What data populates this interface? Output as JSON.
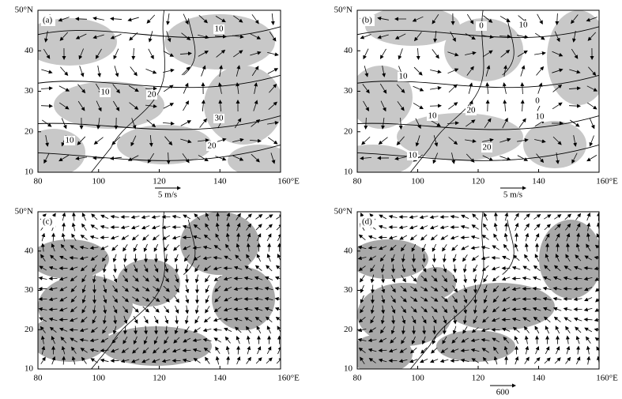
{
  "panels": [
    {
      "label": "(a)",
      "xticks": [
        "80",
        "100",
        "120",
        "140",
        "160°E"
      ],
      "yticks": [
        "10",
        "20",
        "30",
        "40",
        "50°N"
      ],
      "scale_label": "5 m/s",
      "contour_labels": [
        "10",
        "10",
        "20",
        "30",
        "10",
        "20"
      ]
    },
    {
      "label": "(b)",
      "xticks": [
        "80",
        "100",
        "120",
        "140",
        "160°E"
      ],
      "yticks": [
        "10",
        "20",
        "30",
        "40",
        "50°N"
      ],
      "scale_label": "5 m/s",
      "contour_labels": [
        "0",
        "10",
        "10",
        "0",
        "10",
        "20",
        "10",
        "20",
        "10"
      ]
    },
    {
      "label": "(c)",
      "xticks": [
        "80",
        "100",
        "120",
        "140",
        "160°E"
      ],
      "yticks": [
        "10",
        "20",
        "30",
        "40",
        "50°N"
      ],
      "contour_labels": []
    },
    {
      "label": "(d)",
      "xticks": [
        "80",
        "100",
        "120",
        "140",
        "160°E"
      ],
      "yticks": [
        "10",
        "20",
        "30",
        "40",
        "50°N"
      ],
      "scale_label": "600",
      "contour_labels": []
    }
  ]
}
